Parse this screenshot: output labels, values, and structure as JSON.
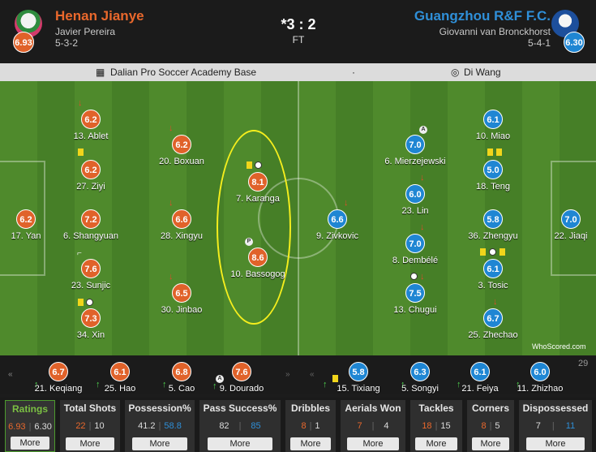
{
  "home": {
    "name": "Henan Jianye",
    "manager": "Javier Pereira",
    "formation": "5-3-2",
    "rating": "6.93",
    "color": "#e0622a",
    "players": [
      {
        "rating": "6.2",
        "name": "17. Yan"
      },
      {
        "rating": "6.2",
        "name": "13. Ablet"
      },
      {
        "rating": "6.2",
        "name": "27. Ziyi"
      },
      {
        "rating": "7.2",
        "name": "6. Shangyuan"
      },
      {
        "rating": "7.6",
        "name": "23. Sunjic"
      },
      {
        "rating": "7.3",
        "name": "34. Xin"
      },
      {
        "rating": "6.2",
        "name": "20. Boxuan"
      },
      {
        "rating": "6.6",
        "name": "28. Xingyu"
      },
      {
        "rating": "6.5",
        "name": "30. Jinbao"
      },
      {
        "rating": "8.1",
        "name": "7. Karanga"
      },
      {
        "rating": "8.6",
        "name": "10. Bassogog"
      }
    ],
    "bench": [
      {
        "rating": "6.7",
        "name": "21. Keqiang"
      },
      {
        "rating": "6.1",
        "name": "25. Hao"
      },
      {
        "rating": "6.8",
        "name": "5. Cao"
      },
      {
        "rating": "7.6",
        "name": "9. Dourado"
      }
    ]
  },
  "away": {
    "name": "Guangzhou R&F F.C.",
    "manager": "Giovanni van Bronckhorst",
    "formation": "5-4-1",
    "rating": "6.30",
    "color": "#1f86d3",
    "players": [
      {
        "rating": "7.0",
        "name": "22. Jiaqi"
      },
      {
        "rating": "6.1",
        "name": "10. Miao"
      },
      {
        "rating": "5.0",
        "name": "18. Teng"
      },
      {
        "rating": "5.8",
        "name": "36. Zhengyu"
      },
      {
        "rating": "6.1",
        "name": "3. Tosic"
      },
      {
        "rating": "6.7",
        "name": "25. Zhechao"
      },
      {
        "rating": "7.0",
        "name": "6. Mierzejewski"
      },
      {
        "rating": "6.0",
        "name": "23. Lin"
      },
      {
        "rating": "7.0",
        "name": "8. Dembélé"
      },
      {
        "rating": "7.5",
        "name": "13. Chugui"
      },
      {
        "rating": "6.6",
        "name": "9. Zivkovic"
      }
    ],
    "bench": [
      {
        "rating": "5.8",
        "name": "15. Tixiang"
      },
      {
        "rating": "6.3",
        "name": "5. Songyi"
      },
      {
        "rating": "6.1",
        "name": "21. Feiya"
      },
      {
        "rating": "6.0",
        "name": "11. Zhizhao"
      }
    ],
    "bench_extra": "29"
  },
  "match": {
    "score": "*3 : 2",
    "status": "FT",
    "venue": "Dalian Pro Soccer Academy Base",
    "dot": "·",
    "referee": "Di Wang"
  },
  "branding": "WhoScored.com",
  "icons": {
    "sub_off": "arrow-down-icon",
    "sub_on": "arrow-up-icon",
    "yellow_card": "yellow-card-icon",
    "goal": "ball-icon"
  },
  "stats": [
    {
      "title": "Ratings",
      "home": "6.93",
      "away": "6.30",
      "more": "More"
    },
    {
      "title": "Total Shots",
      "home": "22",
      "away": "10",
      "more": "More"
    },
    {
      "title": "Possession%",
      "home": "41.2",
      "away": "58.8",
      "more": "More"
    },
    {
      "title": "Pass Success%",
      "home": "82",
      "away": "85",
      "more": "More"
    },
    {
      "title": "Dribbles",
      "home": "8",
      "away": "1",
      "more": "More"
    },
    {
      "title": "Aerials Won",
      "home": "7",
      "away": "4",
      "more": "More"
    },
    {
      "title": "Tackles",
      "home": "18",
      "away": "15",
      "more": "More"
    },
    {
      "title": "Corners",
      "home": "8",
      "away": "5",
      "more": "More"
    },
    {
      "title": "Dispossessed",
      "home": "7",
      "away": "11",
      "more": "More"
    }
  ]
}
